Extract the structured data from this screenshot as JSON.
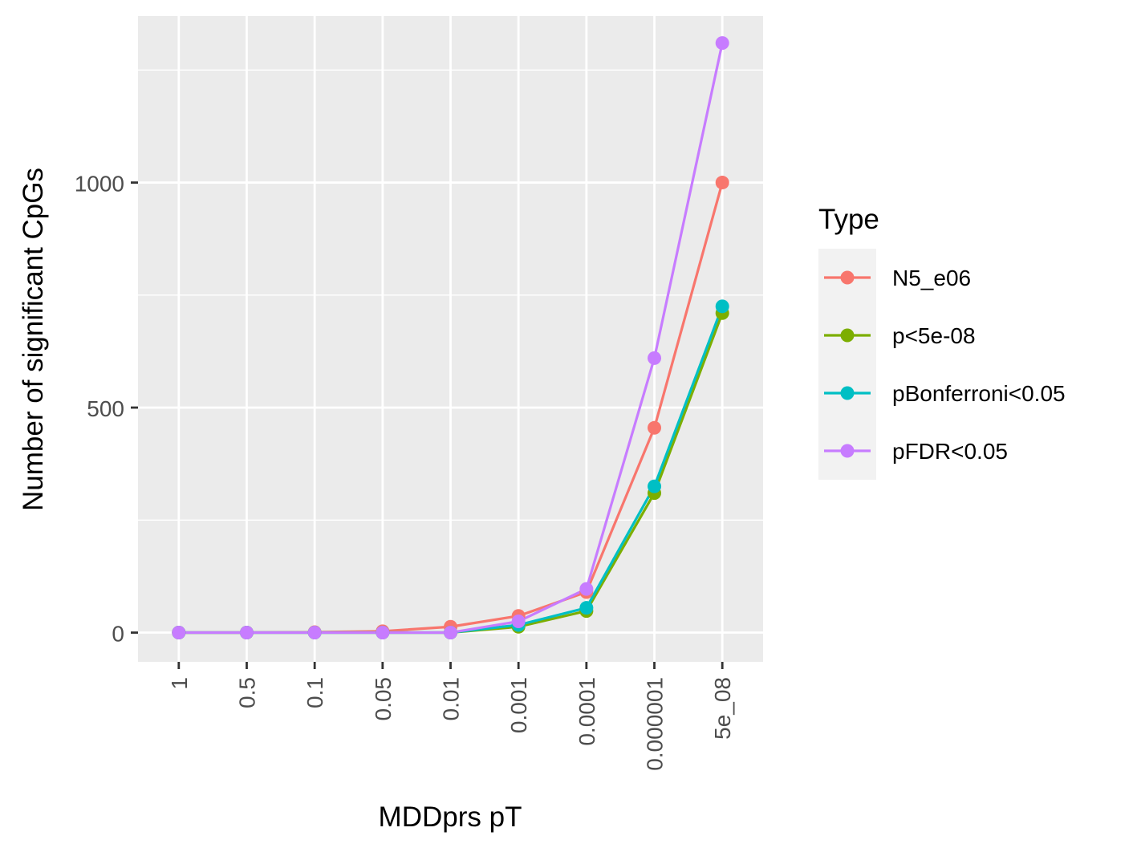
{
  "chart_data": {
    "type": "line",
    "title": "",
    "xlabel": "MDDprs pT",
    "ylabel": "Number of significant CpGs",
    "categories": [
      "1",
      "0.5",
      "0.1",
      "0.05",
      "0.01",
      "0.001",
      "0.0001",
      "0.000001",
      "5e_08"
    ],
    "y_ticks": [
      0,
      500,
      1000
    ],
    "ylim": [
      -65,
      1370
    ],
    "grid": true,
    "legend": {
      "title": "Type",
      "position": "right"
    },
    "series": [
      {
        "name": "N5_e06",
        "color": "#F8766D",
        "values": [
          0,
          0,
          1,
          3,
          13,
          37,
          90,
          455,
          1000
        ]
      },
      {
        "name": "p<5e-08",
        "color": "#7CAE00",
        "values": [
          0,
          0,
          0,
          0,
          0,
          13,
          48,
          310,
          710
        ]
      },
      {
        "name": "pBonferroni<0.05",
        "color": "#00BFC4",
        "values": [
          0,
          0,
          0,
          0,
          0,
          17,
          55,
          325,
          725
        ]
      },
      {
        "name": "pFDR<0.05",
        "color": "#C77CFF",
        "values": [
          0,
          0,
          0,
          0,
          0,
          25,
          97,
          610,
          1310
        ]
      }
    ]
  }
}
